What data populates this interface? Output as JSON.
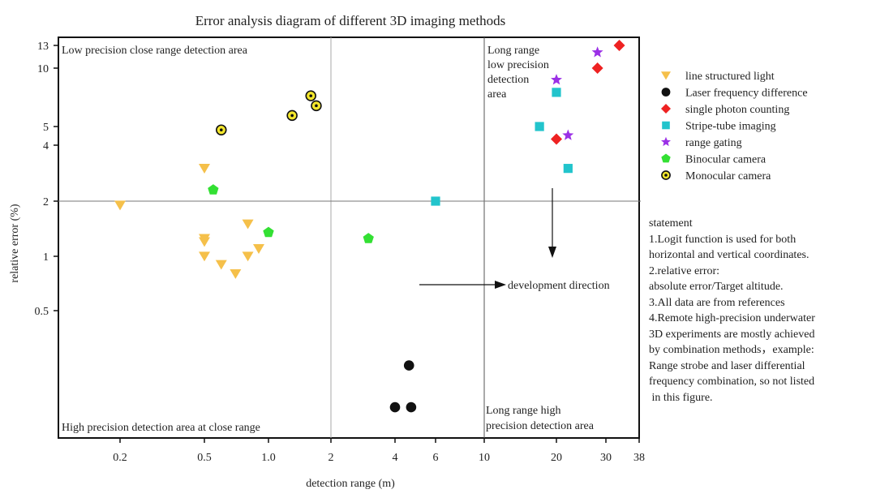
{
  "chart_data": {
    "type": "scatter",
    "title": "Error analysis diagram of different 3D imaging methods",
    "xlabel": "detection range (m)",
    "ylabel": "relative error (%)",
    "x_scale": "logit",
    "y_scale": "logit",
    "xlim": [
      0.1,
      38
    ],
    "ylim": [
      0.13,
      13.5
    ],
    "x_ticks": [
      0.2,
      0.5,
      1.0,
      2,
      4,
      6,
      10,
      20,
      30,
      38
    ],
    "x_tick_labels": [
      "0.2",
      "0.5",
      "1.0",
      "2",
      "4",
      "6",
      "10",
      "20",
      "30",
      "38"
    ],
    "y_ticks": [
      0.5,
      1,
      2,
      4,
      5,
      10,
      13
    ],
    "y_tick_labels": [
      "0.5",
      "1",
      "2",
      "4",
      "5",
      "10",
      "13"
    ],
    "grid": false,
    "reference_lines": {
      "x": [
        2,
        10
      ],
      "y": [
        2
      ]
    },
    "legend_position": "right",
    "series": [
      {
        "name": "line structured light",
        "marker": "triangle-down",
        "color": "#f5c04a",
        "points": [
          [
            0.2,
            1.9
          ],
          [
            0.5,
            3.0
          ],
          [
            0.5,
            1.25
          ],
          [
            0.5,
            1.2
          ],
          [
            0.5,
            1.0
          ],
          [
            0.6,
            0.9
          ],
          [
            0.7,
            0.8
          ],
          [
            0.8,
            1.5
          ],
          [
            0.8,
            1.0
          ],
          [
            0.9,
            1.1
          ]
        ]
      },
      {
        "name": "Laser frequency difference",
        "marker": "circle",
        "color": "#111111",
        "points": [
          [
            4.6,
            0.28
          ],
          [
            4.0,
            0.18
          ],
          [
            4.7,
            0.18
          ]
        ]
      },
      {
        "name": "single photon counting",
        "marker": "diamond",
        "color": "#ee2222",
        "points": [
          [
            33,
            13
          ],
          [
            28,
            10
          ],
          [
            20,
            4.3
          ]
        ]
      },
      {
        "name": "Stripe-tube imaging",
        "marker": "square",
        "color": "#22c4cc",
        "points": [
          [
            20,
            7.5
          ],
          [
            17,
            5.0
          ],
          [
            22,
            3.0
          ],
          [
            6,
            2.0
          ]
        ]
      },
      {
        "name": "range gating",
        "marker": "star",
        "color": "#9b30e6",
        "points": [
          [
            28,
            12
          ],
          [
            20,
            8.7
          ],
          [
            22,
            4.5
          ]
        ]
      },
      {
        "name": "Binocular camera",
        "marker": "pentagon",
        "color": "#33e033",
        "points": [
          [
            0.55,
            2.3
          ],
          [
            1.0,
            1.35
          ],
          [
            3.0,
            1.25
          ]
        ]
      },
      {
        "name": "Monocular camera",
        "marker": "dotted-circle",
        "color": "#f3e62c",
        "points": [
          [
            0.6,
            4.8
          ],
          [
            1.3,
            5.7
          ],
          [
            1.6,
            7.2
          ],
          [
            1.7,
            6.4
          ]
        ]
      }
    ],
    "annotations": {
      "top_left": "Low precision close range detection area",
      "top_right": "Long range\nlow precision\ndetection\narea",
      "bottom_left": "High precision detection area at close range",
      "bottom_right": "Long range high\nprecision detection area",
      "arrow_text": "development direction"
    }
  },
  "statement": [
    "statement",
    "1.Logit function is used for both",
    "horizontal and vertical coordinates.",
    "2.relative error:",
    "absolute error/Target altitude.",
    "3.All data are from references",
    "4.Remote high-precision underwater",
    "3D experiments are mostly achieved",
    "by combination methods，example:",
    "Range strobe and laser differential",
    "frequency combination, so not listed",
    " in this figure."
  ]
}
